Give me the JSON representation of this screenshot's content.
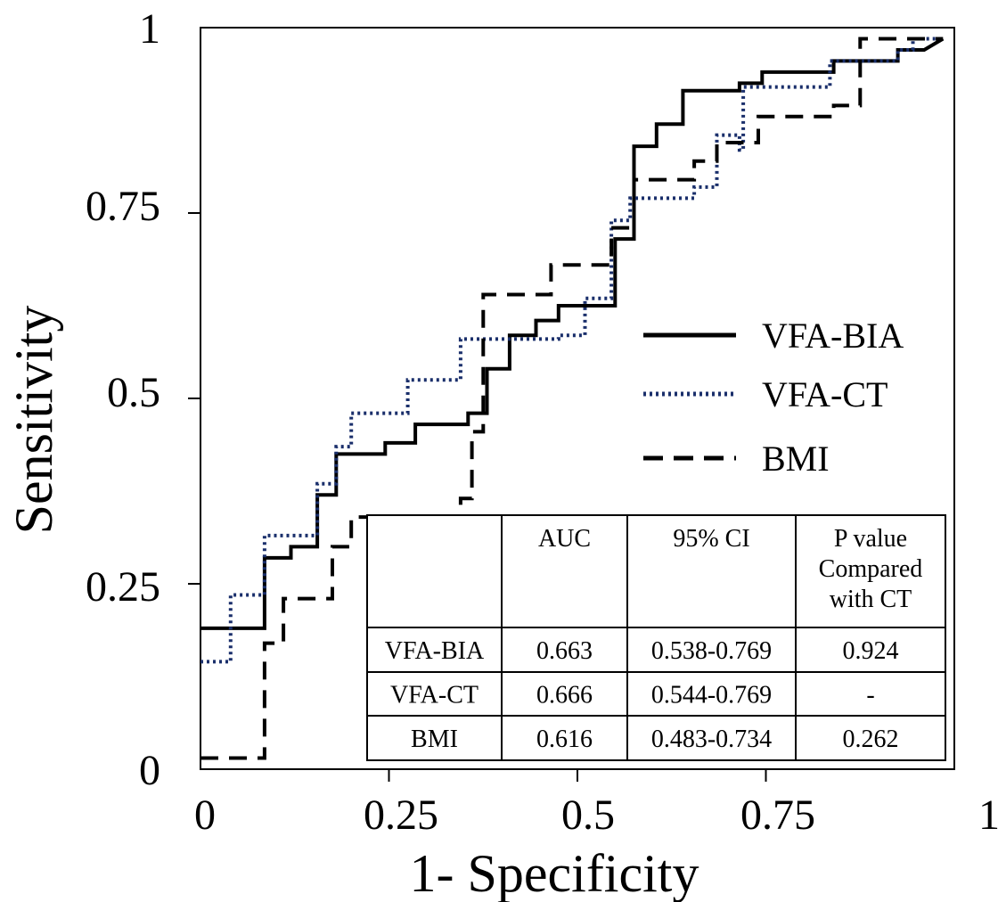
{
  "chart_data": {
    "type": "line",
    "title": "",
    "xlabel": "1- Specificity",
    "ylabel": "Sensitivity",
    "xlim": [
      0,
      1
    ],
    "ylim": [
      0,
      1
    ],
    "x_ticks": [
      "0",
      "0.25",
      "0.5",
      "0.75",
      "1"
    ],
    "y_ticks": [
      "0",
      "0.25",
      "0.5",
      "0.75",
      "1"
    ],
    "legend_position": "center-right",
    "series": [
      {
        "name": "VFA-BIA",
        "style": "solid",
        "color": "#000000",
        "points": [
          [
            0.0,
            0.19
          ],
          [
            0.085,
            0.19
          ],
          [
            0.085,
            0.285
          ],
          [
            0.12,
            0.285
          ],
          [
            0.12,
            0.3
          ],
          [
            0.155,
            0.3
          ],
          [
            0.155,
            0.37
          ],
          [
            0.18,
            0.37
          ],
          [
            0.18,
            0.425
          ],
          [
            0.245,
            0.425
          ],
          [
            0.245,
            0.44
          ],
          [
            0.285,
            0.44
          ],
          [
            0.285,
            0.465
          ],
          [
            0.355,
            0.465
          ],
          [
            0.355,
            0.48
          ],
          [
            0.38,
            0.48
          ],
          [
            0.38,
            0.54
          ],
          [
            0.41,
            0.54
          ],
          [
            0.41,
            0.585
          ],
          [
            0.445,
            0.585
          ],
          [
            0.445,
            0.605
          ],
          [
            0.475,
            0.605
          ],
          [
            0.475,
            0.625
          ],
          [
            0.55,
            0.625
          ],
          [
            0.55,
            0.715
          ],
          [
            0.575,
            0.715
          ],
          [
            0.575,
            0.84
          ],
          [
            0.605,
            0.84
          ],
          [
            0.605,
            0.87
          ],
          [
            0.64,
            0.87
          ],
          [
            0.64,
            0.915
          ],
          [
            0.715,
            0.915
          ],
          [
            0.715,
            0.925
          ],
          [
            0.745,
            0.925
          ],
          [
            0.745,
            0.94
          ],
          [
            0.84,
            0.94
          ],
          [
            0.84,
            0.955
          ],
          [
            0.925,
            0.955
          ],
          [
            0.925,
            0.97
          ],
          [
            0.96,
            0.97
          ],
          [
            0.985,
            0.985
          ]
        ]
      },
      {
        "name": "VFA-CT",
        "style": "dotted",
        "color": "#1a2f6b",
        "points": [
          [
            0.0,
            0.145
          ],
          [
            0.04,
            0.145
          ],
          [
            0.04,
            0.235
          ],
          [
            0.085,
            0.235
          ],
          [
            0.085,
            0.315
          ],
          [
            0.155,
            0.315
          ],
          [
            0.155,
            0.385
          ],
          [
            0.18,
            0.385
          ],
          [
            0.18,
            0.435
          ],
          [
            0.2,
            0.435
          ],
          [
            0.2,
            0.48
          ],
          [
            0.275,
            0.48
          ],
          [
            0.275,
            0.525
          ],
          [
            0.345,
            0.525
          ],
          [
            0.345,
            0.58
          ],
          [
            0.475,
            0.58
          ],
          [
            0.475,
            0.585
          ],
          [
            0.51,
            0.585
          ],
          [
            0.51,
            0.635
          ],
          [
            0.545,
            0.635
          ],
          [
            0.545,
            0.74
          ],
          [
            0.57,
            0.74
          ],
          [
            0.57,
            0.77
          ],
          [
            0.655,
            0.77
          ],
          [
            0.655,
            0.785
          ],
          [
            0.685,
            0.785
          ],
          [
            0.685,
            0.855
          ],
          [
            0.715,
            0.855
          ],
          [
            0.715,
            0.835
          ],
          [
            0.72,
            0.835
          ],
          [
            0.72,
            0.92
          ],
          [
            0.835,
            0.92
          ],
          [
            0.835,
            0.955
          ],
          [
            0.925,
            0.955
          ],
          [
            0.925,
            0.97
          ],
          [
            0.945,
            0.97
          ],
          [
            0.945,
            0.985
          ],
          [
            0.985,
            0.985
          ]
        ]
      },
      {
        "name": "BMI",
        "style": "dashed",
        "color": "#000000",
        "points": [
          [
            0.0,
            0.015
          ],
          [
            0.085,
            0.015
          ],
          [
            0.085,
            0.17
          ],
          [
            0.11,
            0.17
          ],
          [
            0.11,
            0.23
          ],
          [
            0.175,
            0.23
          ],
          [
            0.175,
            0.3
          ],
          [
            0.2,
            0.3
          ],
          [
            0.2,
            0.34
          ],
          [
            0.345,
            0.34
          ],
          [
            0.345,
            0.365
          ],
          [
            0.36,
            0.365
          ],
          [
            0.36,
            0.455
          ],
          [
            0.375,
            0.455
          ],
          [
            0.375,
            0.64
          ],
          [
            0.465,
            0.64
          ],
          [
            0.465,
            0.68
          ],
          [
            0.545,
            0.68
          ],
          [
            0.545,
            0.73
          ],
          [
            0.575,
            0.73
          ],
          [
            0.575,
            0.795
          ],
          [
            0.655,
            0.795
          ],
          [
            0.655,
            0.82
          ],
          [
            0.685,
            0.82
          ],
          [
            0.685,
            0.845
          ],
          [
            0.74,
            0.845
          ],
          [
            0.74,
            0.88
          ],
          [
            0.84,
            0.88
          ],
          [
            0.84,
            0.895
          ],
          [
            0.875,
            0.895
          ],
          [
            0.875,
            0.985
          ],
          [
            0.985,
            0.985
          ]
        ]
      }
    ],
    "table": {
      "headers": [
        "",
        "AUC",
        "95% CI",
        "P value Compared with CT"
      ],
      "header_lines": [
        [
          ""
        ],
        [
          "AUC"
        ],
        [
          "95% CI"
        ],
        [
          "P value",
          "Compared",
          "with CT"
        ]
      ],
      "rows": [
        [
          "VFA-BIA",
          "0.663",
          "0.538-0.769",
          "0.924"
        ],
        [
          "VFA-CT",
          "0.666",
          "0.544-0.769",
          "-"
        ],
        [
          "BMI",
          "0.616",
          "0.483-0.734",
          "0.262"
        ]
      ]
    }
  }
}
